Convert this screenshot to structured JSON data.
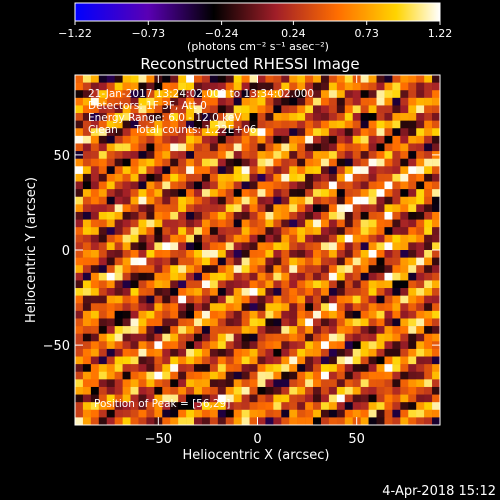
{
  "chart_data": {
    "type": "heatmap",
    "title": "Reconstructed RHESSI Image",
    "xlabel": "Heliocentric X (arcsec)",
    "ylabel": "Heliocentric Y (arcsec)",
    "xlim": [
      -92,
      92
    ],
    "ylim": [
      -92,
      92
    ],
    "x_ticks": [
      -50,
      0,
      50
    ],
    "x_tick_labels": [
      "−50",
      "0",
      "50"
    ],
    "y_ticks": [
      -50,
      0,
      50
    ],
    "y_tick_labels": [
      "−50",
      "0",
      "50"
    ],
    "colorbar": {
      "range": [
        -1.22,
        1.22
      ],
      "ticks": [
        -1.22,
        -0.73,
        -0.24,
        0.24,
        0.73,
        1.22
      ],
      "tick_labels": [
        "−1.22",
        "−0.73",
        "−0.24",
        "0.24",
        "0.73",
        "1.22"
      ],
      "unit_label": "(photons cm⁻² s⁻¹ asec⁻²)",
      "colors": [
        "#0000ff",
        "#5a00b4",
        "#000000",
        "#a01e28",
        "#ff6e00",
        "#ffd400",
        "#ffffff"
      ]
    },
    "annotations": [
      "21-Jan-2017 13:24:02.000 to 13:34:02.000",
      "Detectors: 1F 3F, Att 0",
      "Energy Range: 6.0 - 12.0 keV",
      "Clean     Total counts: 1.22E+06"
    ],
    "peak_label": "Position of Peak = [56,29]",
    "peak": [
      56,
      29
    ],
    "pattern": {
      "description_units": "arcsec",
      "stripe_angle_deg": 60,
      "stripe_period": 14,
      "grid_cells": 46,
      "value_range": [
        -0.4,
        1.22
      ]
    }
  },
  "footer": {
    "timestamp": "4-Apr-2018 15:12"
  }
}
